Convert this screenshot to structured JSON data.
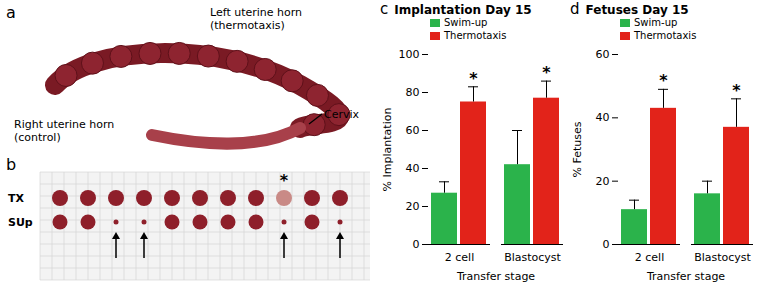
{
  "chart_data": [
    {
      "panel": "c",
      "type": "bar",
      "title": "Implantation Day 15",
      "x_label": "Transfer stage",
      "y_label": "% Implantation",
      "categories": [
        "2 cell",
        "Blastocyst"
      ],
      "series": [
        {
          "name": "Swim-up",
          "color": "#2bb34b",
          "values": [
            27,
            42
          ],
          "errors": [
            6,
            18
          ]
        },
        {
          "name": "Thermotaxis",
          "color": "#e2231a",
          "values": [
            75,
            77
          ],
          "errors": [
            8,
            9
          ]
        }
      ],
      "ylim": [
        0,
        100
      ],
      "yticks": [
        0,
        20,
        40,
        60,
        80,
        100
      ],
      "legend": "top-left",
      "annotations": [
        {
          "text": "*",
          "category": "2 cell",
          "series": "Thermotaxis"
        },
        {
          "text": "*",
          "category": "Blastocyst",
          "series": "Thermotaxis"
        }
      ]
    },
    {
      "panel": "d",
      "type": "bar",
      "title": "Fetuses Day 15",
      "x_label": "Transfer stage",
      "y_label": "% Fetuses",
      "categories": [
        "2 cell",
        "Blastocyst"
      ],
      "series": [
        {
          "name": "Swim-up",
          "color": "#2bb34b",
          "values": [
            11,
            16
          ],
          "errors": [
            3,
            4
          ]
        },
        {
          "name": "Thermotaxis",
          "color": "#e2231a",
          "values": [
            43,
            37
          ],
          "errors": [
            6,
            9
          ]
        }
      ],
      "ylim": [
        0,
        60
      ],
      "yticks": [
        0,
        20,
        40,
        60
      ],
      "legend": "top-left",
      "annotations": [
        {
          "text": "*",
          "category": "2 cell",
          "series": "Thermotaxis"
        },
        {
          "text": "*",
          "category": "Blastocyst",
          "series": "Thermotaxis"
        }
      ]
    }
  ],
  "photo_panels": {
    "panel_a": {
      "label": "a",
      "left_horn": [
        "Left uterine horn",
        "(thermotaxis)"
      ],
      "right_horn": [
        "Right uterine horn",
        "(control)"
      ],
      "cervix": "Cervix"
    },
    "panel_b": {
      "label": "b",
      "rows": [
        "TX",
        "SUp"
      ],
      "mark": "*"
    }
  }
}
